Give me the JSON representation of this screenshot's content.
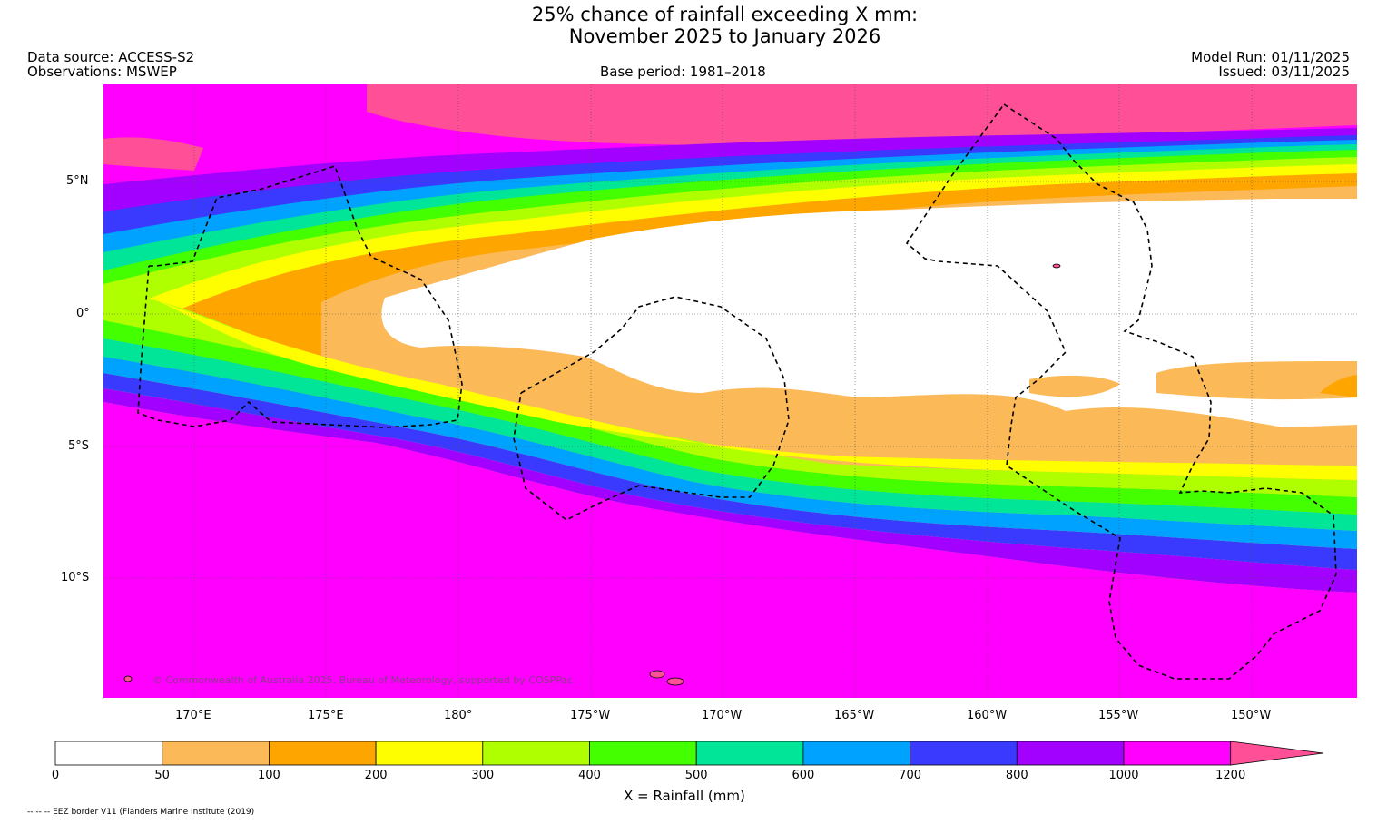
{
  "header": {
    "title_line1": "25% chance of rainfall exceeding X mm:",
    "title_line2": "November 2025 to January 2026",
    "data_source": "Data source: ACCESS-S2",
    "observations": "Observations: MSWEP",
    "base_period": "Base period: 1981–2018",
    "model_run": "Model Run: 01/11/2025",
    "issued": "Issued: 03/11/2025"
  },
  "map": {
    "lat_labels": [
      "5°N",
      "0°",
      "5°S",
      "10°S"
    ],
    "lon_labels": [
      "170°E",
      "175°E",
      "180°",
      "175°W",
      "170°W",
      "165°W",
      "160°W",
      "155°W",
      "150°W"
    ],
    "copyright": "© Commonwealth of Australia 2025, Bureau of Meteorology, supported by COSPPac"
  },
  "legend": {
    "title": "X = Rainfall (mm)",
    "tick_labels": [
      "0",
      "50",
      "100",
      "200",
      "300",
      "400",
      "500",
      "600",
      "700",
      "800",
      "1000",
      "1200"
    ],
    "colors": [
      "#ffffff",
      "#fbb957",
      "#fea500",
      "#fefe00",
      "#b0ff00",
      "#44ff00",
      "#00e598",
      "#00a2ff",
      "#3a3aff",
      "#a200ff",
      "#ff00ff",
      "#ff4f96"
    ],
    "footnote": "-- -- -- EEZ border V11 (Flanders Marine Institute (2019)"
  }
}
